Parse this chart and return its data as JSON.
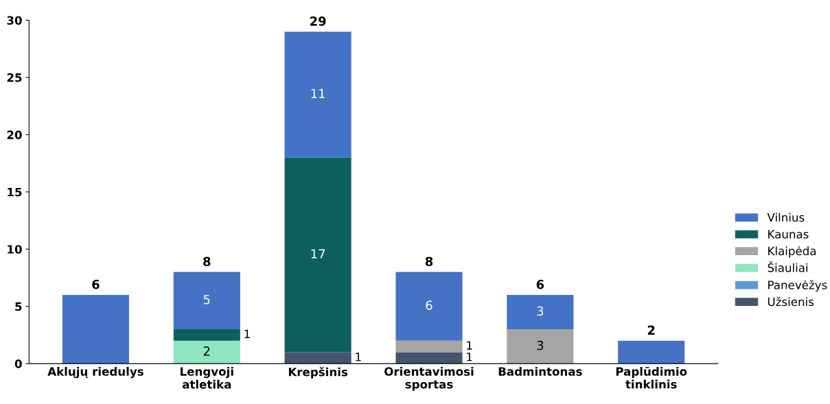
{
  "chart_data": {
    "type": "bar",
    "stacked": true,
    "categories": [
      "Aklųjų riedulys",
      "Lengvoji\natletika",
      "Krepšinis",
      "Orientavimosi\nsportas",
      "Badmintonas",
      "Paplūdimio\ntinklinis"
    ],
    "series": [
      {
        "name": "Užsienis",
        "color": "#44546a",
        "values": [
          0,
          0,
          1,
          1,
          0,
          0
        ],
        "value_labels": [
          null,
          null,
          "1",
          "1",
          null,
          null
        ]
      },
      {
        "name": "Panevėžys",
        "color": "#5b9bd5",
        "values": [
          0,
          0,
          0,
          0,
          0,
          0
        ],
        "value_labels": [
          null,
          null,
          null,
          null,
          null,
          null
        ]
      },
      {
        "name": "Šiauliai",
        "color": "#8ee6c0",
        "values": [
          0,
          2,
          0,
          0,
          0,
          0
        ],
        "value_labels": [
          null,
          "2",
          null,
          null,
          null,
          null
        ]
      },
      {
        "name": "Klaipėda",
        "color": "#a5a5a5",
        "values": [
          0,
          0,
          0,
          1,
          3,
          0
        ],
        "value_labels": [
          null,
          null,
          null,
          "1",
          "3",
          null
        ]
      },
      {
        "name": "Kaunas",
        "color": "#0e6060",
        "values": [
          0,
          1,
          17,
          0,
          0,
          0
        ],
        "value_labels": [
          null,
          "1",
          "17",
          null,
          null,
          null
        ]
      },
      {
        "name": "Vilnius",
        "color": "#4472c4",
        "values": [
          6,
          5,
          11,
          6,
          3,
          2
        ],
        "value_labels": [
          null,
          "5",
          "11",
          "6",
          "3",
          null
        ]
      }
    ],
    "totals": [
      "6",
      "8",
      "29",
      "8",
      "6",
      "2"
    ],
    "ylim": [
      0,
      30
    ],
    "yticks": [
      0,
      5,
      10,
      15,
      20,
      25,
      30
    ],
    "grid": false,
    "legend": "right"
  }
}
